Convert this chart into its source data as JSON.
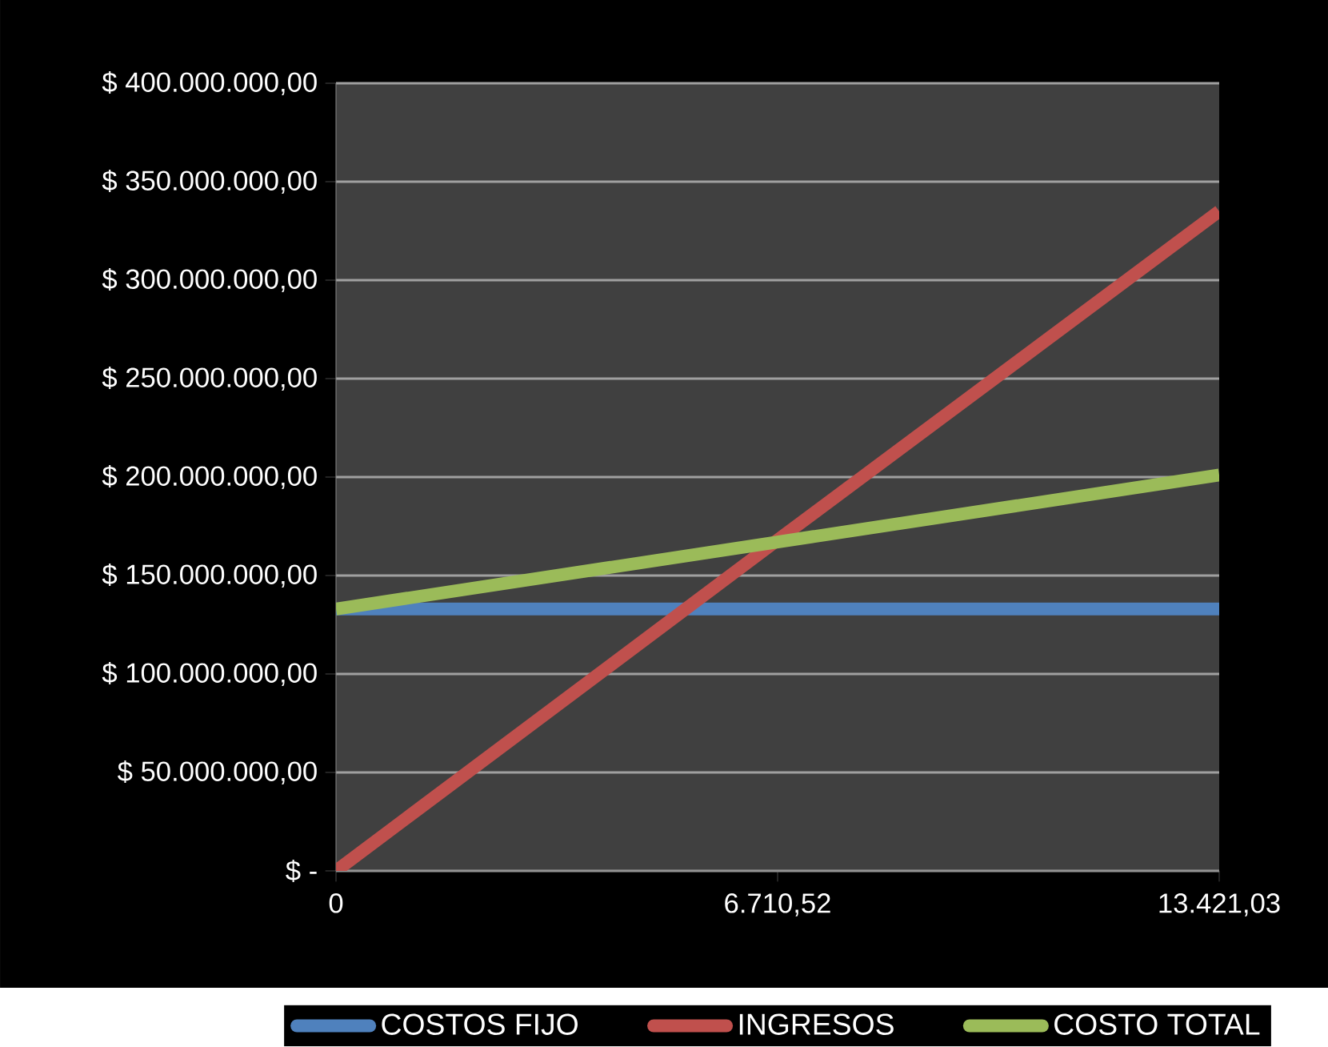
{
  "chart_data": {
    "type": "line",
    "categories": [
      "0",
      "6.710,52",
      "13.421,03"
    ],
    "series": [
      {
        "name": "COSTOS FIJO",
        "color": "#4f81bd",
        "values": [
          133000000,
          133000000,
          133000000
        ]
      },
      {
        "name": "INGRESOS",
        "color": "#c0504d",
        "values": [
          0,
          168000000,
          335000000
        ]
      },
      {
        "name": "COSTO TOTAL",
        "color": "#9bbb59",
        "values": [
          133000000,
          167000000,
          201000000
        ]
      }
    ],
    "ylim": [
      0,
      400000000
    ],
    "yticks": [
      {
        "value": 0,
        "label": "$ -"
      },
      {
        "value": 50000000,
        "label": "$ 50.000.000,00"
      },
      {
        "value": 100000000,
        "label": "$ 100.000.000,00"
      },
      {
        "value": 150000000,
        "label": "$ 150.000.000,00"
      },
      {
        "value": 200000000,
        "label": "$ 200.000.000,00"
      },
      {
        "value": 250000000,
        "label": "$ 250.000.000,00"
      },
      {
        "value": 300000000,
        "label": "$ 300.000.000,00"
      },
      {
        "value": 350000000,
        "label": "$ 350.000.000,00"
      },
      {
        "value": 400000000,
        "label": "$ 400.000.000,00"
      }
    ],
    "grid": "y",
    "legend": "bottom",
    "marker": "none",
    "line_style": "solid"
  }
}
